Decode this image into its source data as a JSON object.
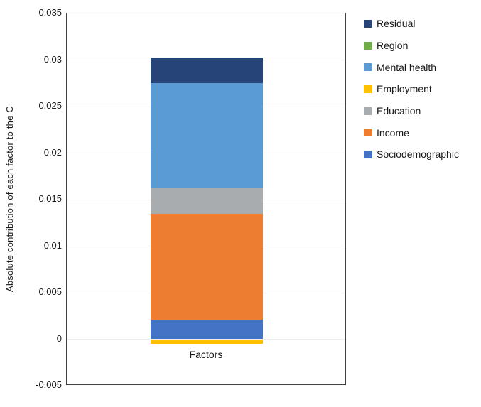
{
  "chart_data": {
    "type": "bar",
    "stacked": true,
    "categories": [
      "Factors"
    ],
    "xlabel": "Factors",
    "ylabel": "Absolute contribution of each factor to the C",
    "ylim": [
      -0.005,
      0.035
    ],
    "yticks": [
      0.035,
      0.03,
      0.025,
      0.02,
      0.015,
      0.01,
      0.005,
      0,
      -0.005
    ],
    "ytick_labels": [
      "0.035",
      "0.03",
      "0.025",
      "0.02",
      "0.015",
      "0.01",
      "0.005",
      "0",
      "-0.005"
    ],
    "grid": true,
    "legend_position": "right",
    "series": [
      {
        "name": "Sociodemographic",
        "value": 0.0021,
        "color": "#4472C4"
      },
      {
        "name": "Income",
        "value": 0.0114,
        "color": "#ED7D31"
      },
      {
        "name": "Education",
        "value": 0.0028,
        "color": "#A9ACAE"
      },
      {
        "name": "Employment",
        "value": -0.0005,
        "color": "#FFC000"
      },
      {
        "name": "Mental health",
        "value": 0.0112,
        "color": "#5B9BD5"
      },
      {
        "name": "Region",
        "value": 0.0,
        "color": "#70AD47"
      },
      {
        "name": "Residual",
        "value": 0.0028,
        "color": "#264478"
      }
    ],
    "legend": [
      {
        "label": "Residual",
        "color": "#264478"
      },
      {
        "label": "Region",
        "color": "#70AD47"
      },
      {
        "label": "Mental health",
        "color": "#5B9BD5"
      },
      {
        "label": "Employment",
        "color": "#FFC000"
      },
      {
        "label": "Education",
        "color": "#A9ACAE"
      },
      {
        "label": "Income",
        "color": "#ED7D31"
      },
      {
        "label": "Sociodemographic",
        "color": "#4472C4"
      }
    ]
  },
  "colors": {
    "plot_border": "#3f3f3f",
    "gridline": "#f2eeee",
    "text": "#1a1a1a"
  }
}
